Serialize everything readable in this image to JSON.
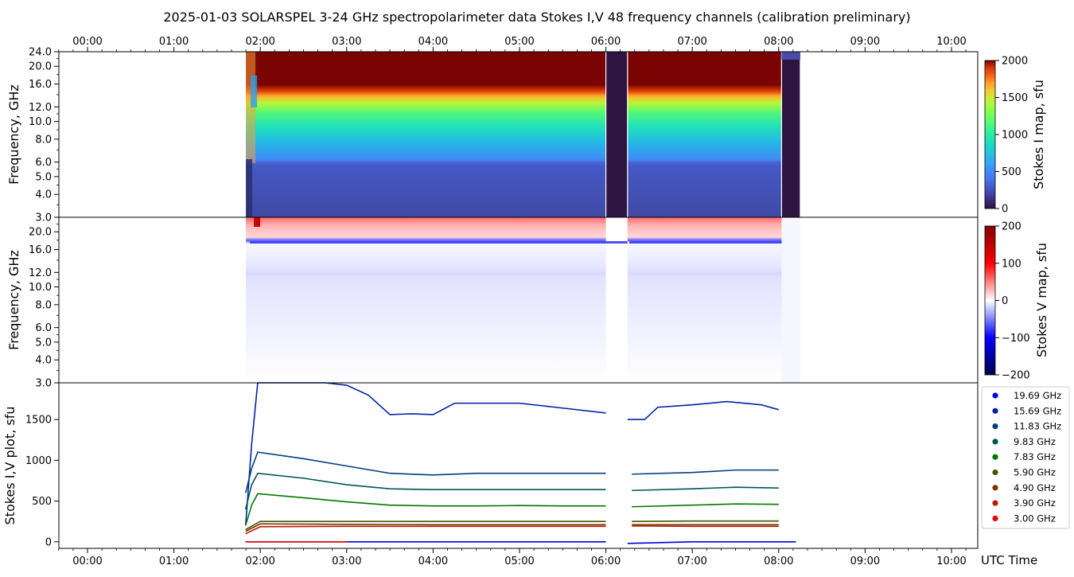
{
  "figure": {
    "title": "2025-01-03  SOLARSPEL  3-24 GHz spectropolarimeter data   Stokes I,V   48 frequency channels   (calibration preliminary)",
    "time_axis_label": "UTC Time"
  },
  "chart_data": [
    {
      "type": "heatmap",
      "panel": "stokes-i-map",
      "ylabel": "Frequency, GHz",
      "colorbar_label": "Stokes I map, sfu",
      "colorbar_range": [
        0,
        2000
      ],
      "colorbar_ticks": [
        "0",
        "500",
        "1000",
        "1500",
        "2000"
      ],
      "colormap": "turbo",
      "x_tick_labels": [
        "00:00",
        "01:00",
        "02:00",
        "03:00",
        "04:00",
        "05:00",
        "06:00",
        "07:00",
        "08:00",
        "09:00",
        "10:00"
      ],
      "y_tick_labels": [
        "3.0",
        "4.0",
        "5.0",
        "6.0",
        "8.0",
        "10.0",
        "12.0",
        "16.0",
        "20.0",
        "24.0"
      ],
      "data_start": "01:50",
      "data_end": "08:15",
      "gaps": [
        [
          "06:00",
          "06:15"
        ],
        [
          "08:02",
          "08:15"
        ]
      ],
      "description_values": {
        "low_freq_level_sfu": 200,
        "mid_freq_level_sfu": 900,
        "high_freq_level_sfu": 2000
      }
    },
    {
      "type": "heatmap",
      "panel": "stokes-v-map",
      "ylabel": "Frequency, GHz",
      "colorbar_label": "Stokes V map, sfu",
      "colorbar_range": [
        -200,
        200
      ],
      "colorbar_ticks": [
        "200",
        "100",
        "0",
        "−100",
        "−200"
      ],
      "colormap": "seismic",
      "y_tick_labels": [
        "3.0",
        "4.0",
        "5.0",
        "6.0",
        "8.0",
        "10.0",
        "12.0",
        "16.0",
        "20.0"
      ],
      "data_start": "01:50",
      "data_end": "08:15"
    },
    {
      "type": "line",
      "panel": "stokes-iv-plot",
      "ylabel": "Stokes I,V plot, sfu",
      "ylim": [
        -80,
        1950
      ],
      "y_tick_labels": [
        "0",
        "500",
        "1000",
        "1500"
      ],
      "x_tick_labels": [
        "00:00",
        "01:00",
        "02:00",
        "03:00",
        "04:00",
        "05:00",
        "06:00",
        "07:00",
        "08:00",
        "09:00",
        "10:00"
      ],
      "series": [
        {
          "name": "19.69 GHz",
          "color": "#0000dd",
          "points": [
            [
              1.83,
              0
            ],
            [
              3,
              0
            ],
            [
              4,
              0
            ],
            [
              5,
              0
            ],
            [
              6,
              0
            ],
            [
              6.25,
              -20
            ],
            [
              7,
              0
            ],
            [
              8,
              0
            ],
            [
              8.2,
              0
            ]
          ]
        },
        {
          "name": "15.69 GHz",
          "color": "#0022aa",
          "points": [
            [
              1.83,
              200
            ],
            [
              1.9,
              1200
            ],
            [
              1.97,
              2000
            ],
            [
              2.5,
              2000
            ],
            [
              2.75,
              1950
            ],
            [
              3,
              1920
            ],
            [
              3.25,
              1800
            ],
            [
              3.5,
              1560
            ],
            [
              3.75,
              1570
            ],
            [
              4,
              1560
            ],
            [
              4.25,
              1700
            ],
            [
              4.5,
              1700
            ],
            [
              5,
              1700
            ],
            [
              5.5,
              1640
            ],
            [
              6,
              1580
            ],
            [
              6.25,
              1500
            ],
            [
              6.45,
              1500
            ],
            [
              6.6,
              1650
            ],
            [
              7,
              1680
            ],
            [
              7.4,
              1720
            ],
            [
              7.8,
              1680
            ],
            [
              8,
              1620
            ]
          ]
        },
        {
          "name": "11.83 GHz",
          "color": "#003f7f",
          "points": [
            [
              1.83,
              600
            ],
            [
              1.9,
              900
            ],
            [
              1.97,
              1100
            ],
            [
              2.5,
              1020
            ],
            [
              3,
              930
            ],
            [
              3.5,
              840
            ],
            [
              4,
              820
            ],
            [
              4.5,
              840
            ],
            [
              5,
              840
            ],
            [
              5.5,
              840
            ],
            [
              6,
              840
            ],
            [
              6.3,
              830
            ],
            [
              7,
              850
            ],
            [
              7.5,
              880
            ],
            [
              8,
              880
            ]
          ]
        },
        {
          "name": "9.83 GHz",
          "color": "#005555",
          "points": [
            [
              1.83,
              400
            ],
            [
              1.9,
              700
            ],
            [
              1.97,
              840
            ],
            [
              2.5,
              780
            ],
            [
              3,
              700
            ],
            [
              3.5,
              650
            ],
            [
              4,
              640
            ],
            [
              4.5,
              640
            ],
            [
              5,
              640
            ],
            [
              5.5,
              640
            ],
            [
              6,
              640
            ],
            [
              6.3,
              630
            ],
            [
              7,
              650
            ],
            [
              7.5,
              670
            ],
            [
              8,
              660
            ]
          ]
        },
        {
          "name": "7.83 GHz",
          "color": "#007700",
          "points": [
            [
              1.83,
              200
            ],
            [
              1.9,
              450
            ],
            [
              1.97,
              590
            ],
            [
              2.5,
              540
            ],
            [
              3,
              490
            ],
            [
              3.5,
              450
            ],
            [
              4,
              440
            ],
            [
              4.5,
              440
            ],
            [
              5,
              445
            ],
            [
              5.5,
              440
            ],
            [
              6,
              440
            ],
            [
              6.3,
              430
            ],
            [
              7,
              450
            ],
            [
              7.5,
              465
            ],
            [
              8,
              460
            ]
          ]
        },
        {
          "name": "5.90 GHz",
          "color": "#445500",
          "points": [
            [
              1.83,
              150
            ],
            [
              2,
              250
            ],
            [
              3,
              250
            ],
            [
              4,
              250
            ],
            [
              5,
              250
            ],
            [
              6,
              250
            ],
            [
              6.3,
              250
            ],
            [
              7,
              255
            ],
            [
              8,
              255
            ]
          ]
        },
        {
          "name": "4.90 GHz",
          "color": "#7a3300",
          "points": [
            [
              1.83,
              130
            ],
            [
              2,
              220
            ],
            [
              3,
              215
            ],
            [
              4,
              210
            ],
            [
              5,
              210
            ],
            [
              6,
              210
            ],
            [
              6.3,
              210
            ],
            [
              7,
              210
            ],
            [
              8,
              210
            ]
          ]
        },
        {
          "name": "3.90 GHz",
          "color": "#bb1a00",
          "points": [
            [
              1.83,
              100
            ],
            [
              2,
              185
            ],
            [
              3,
              190
            ],
            [
              4,
              190
            ],
            [
              5,
              190
            ],
            [
              6,
              190
            ],
            [
              6.3,
              195
            ],
            [
              7,
              190
            ],
            [
              8,
              190
            ]
          ]
        },
        {
          "name": "3.00 GHz",
          "color": "#ee0000",
          "points": [
            [
              1.83,
              0
            ],
            [
              3,
              0
            ],
            [
              8,
              0
            ]
          ]
        }
      ]
    }
  ]
}
